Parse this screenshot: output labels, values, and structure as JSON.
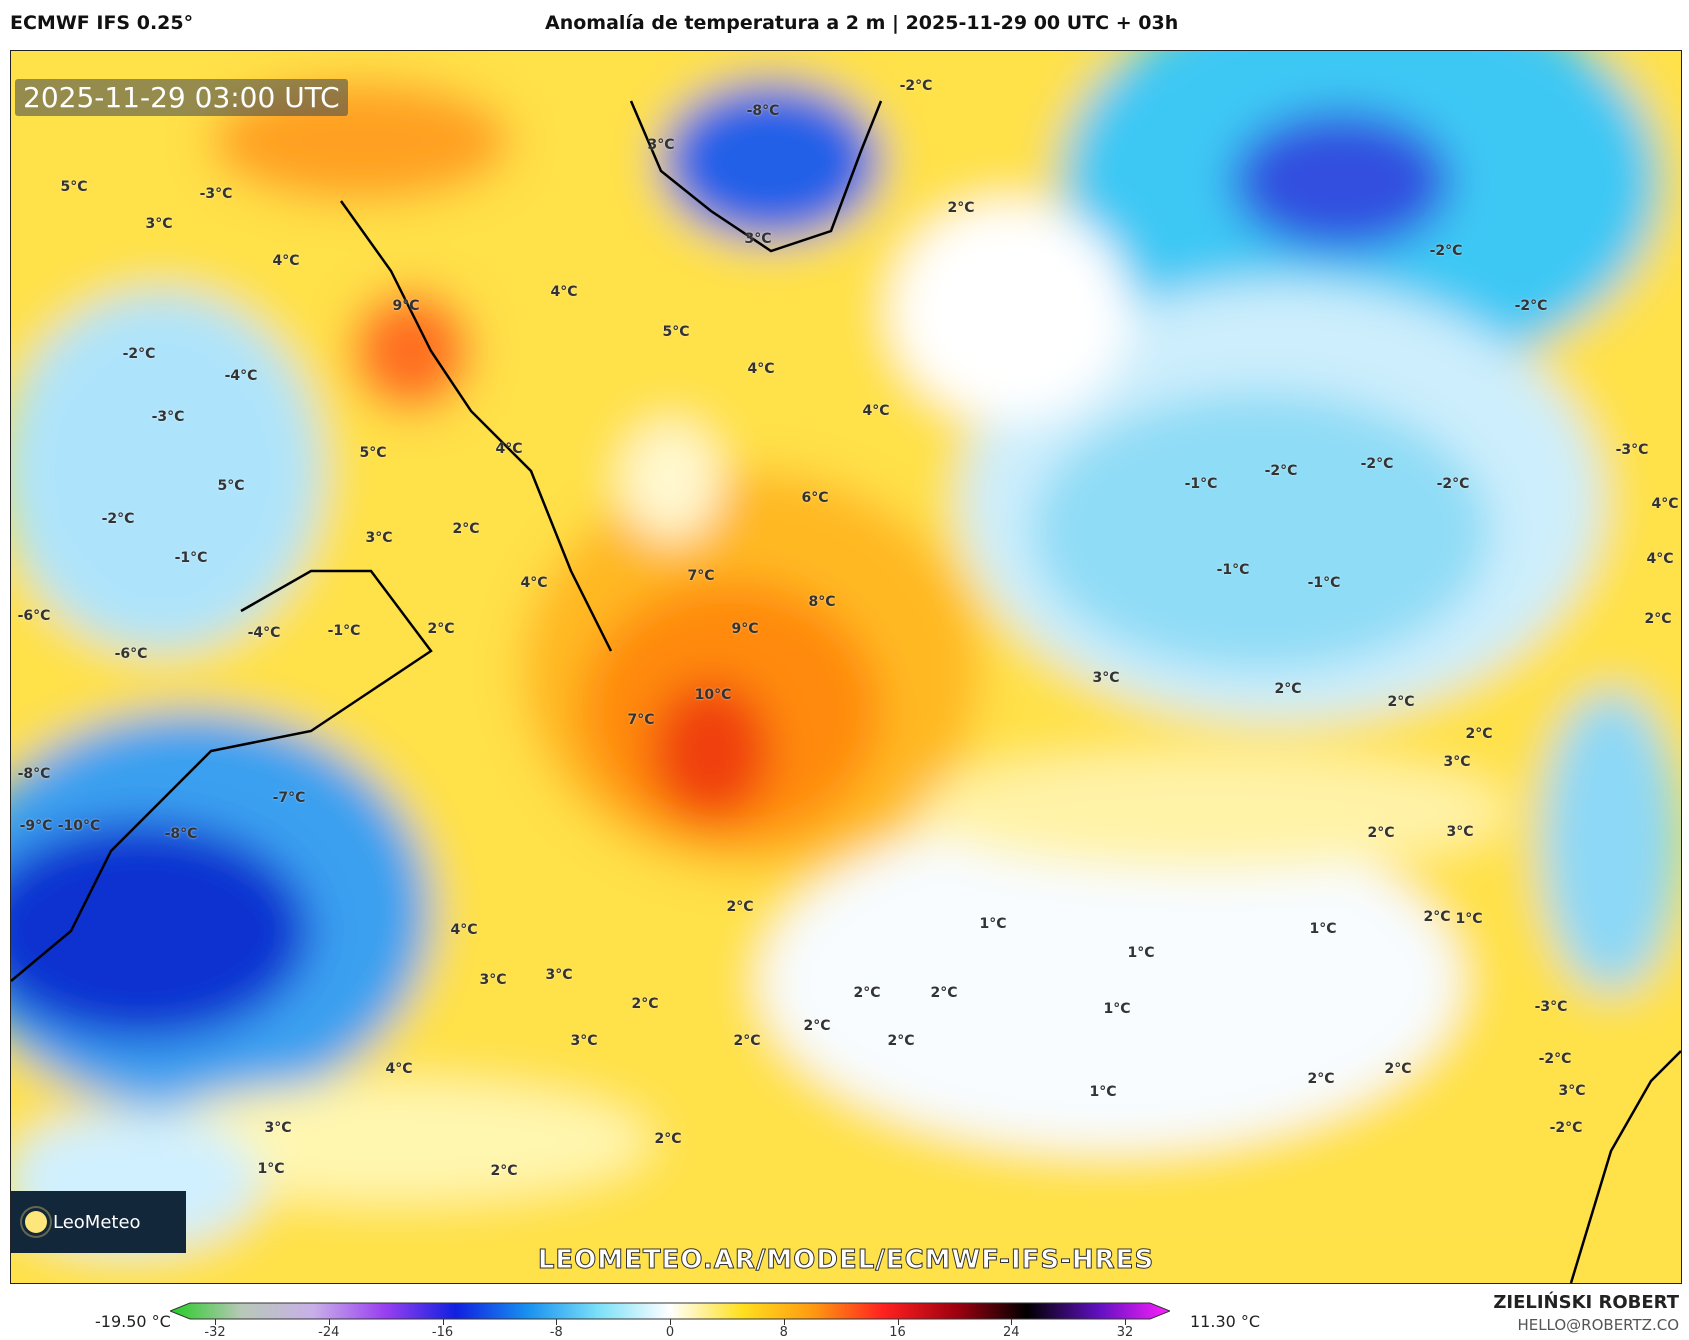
{
  "header": {
    "model": "ECMWF IFS 0.25°",
    "title": "Anomalía de temperatura a 2 m | 2025-11-29 00 UTC + 03h"
  },
  "map": {
    "timestamp": "2025-11-29 03:00 UTC",
    "watermark": "LEOMETEO.AR/MODEL/ECMWF-IFS-HRES",
    "logo": "LeoMeteo",
    "labels": [
      "-2°C",
      "-8°C",
      "3°C",
      "2°C",
      "5°C",
      "-3°C",
      "3°C",
      "4°C",
      "9°C",
      "-2°C",
      "-4°C",
      "-3°C",
      "5°C",
      "4°C",
      "5°C",
      "-2°C",
      "-1°C",
      "3°C",
      "2°C",
      "4°C",
      "-1°C",
      "-6°C",
      "-6°C",
      "-4°C",
      "-8°C",
      "-7°C",
      "-8°C",
      "-9°C",
      "-10°C",
      "3°C",
      "4°C",
      "5°C",
      "4°C",
      "4°C",
      "6°C",
      "7°C",
      "8°C",
      "9°C",
      "10°C",
      "7°C",
      "2°C",
      "-2°C",
      "-2°C",
      "-1°C",
      "-2°C",
      "-2°C",
      "-2°C",
      "-1°C",
      "-1°C",
      "3°C",
      "2°C",
      "2°C",
      "3°C",
      "2°C",
      "2°C",
      "1°C",
      "1°C",
      "1°C",
      "1°C",
      "1°C",
      "1°C",
      "2°C",
      "4°C",
      "3°C",
      "3°C",
      "2°C",
      "3°C",
      "2°C",
      "2°C",
      "2°C",
      "2°C",
      "2°C",
      "4°C",
      "3°C",
      "2°C",
      "2°C",
      "1°C",
      "2°C",
      "2°C",
      "3°C",
      "2°C",
      "3°C",
      "-3°C",
      "-2°C",
      "-2°C",
      "2°C",
      "4°C",
      "4°C",
      "-3°C"
    ]
  },
  "colorbar": {
    "min_label": "-19.50 °C",
    "max_label": "11.30 °C",
    "ticks": [
      "-32",
      "-24",
      "-16",
      "-8",
      "0",
      "8",
      "16",
      "24",
      "32"
    ],
    "range": [
      -32,
      32
    ],
    "colors": [
      "#22cc22",
      "#b8c8b8",
      "#c8b0e8",
      "#9a40f0",
      "#1020e0",
      "#1890f0",
      "#7ce0f8",
      "#ffffff",
      "#ffe020",
      "#ff9a10",
      "#ff2020",
      "#a00010",
      "#000000",
      "#6010c0",
      "#ff20ff"
    ]
  },
  "footer": {
    "author": "ZIELIŃSKI ROBERT",
    "email": "HELLO@ROBERTZ.CO"
  }
}
